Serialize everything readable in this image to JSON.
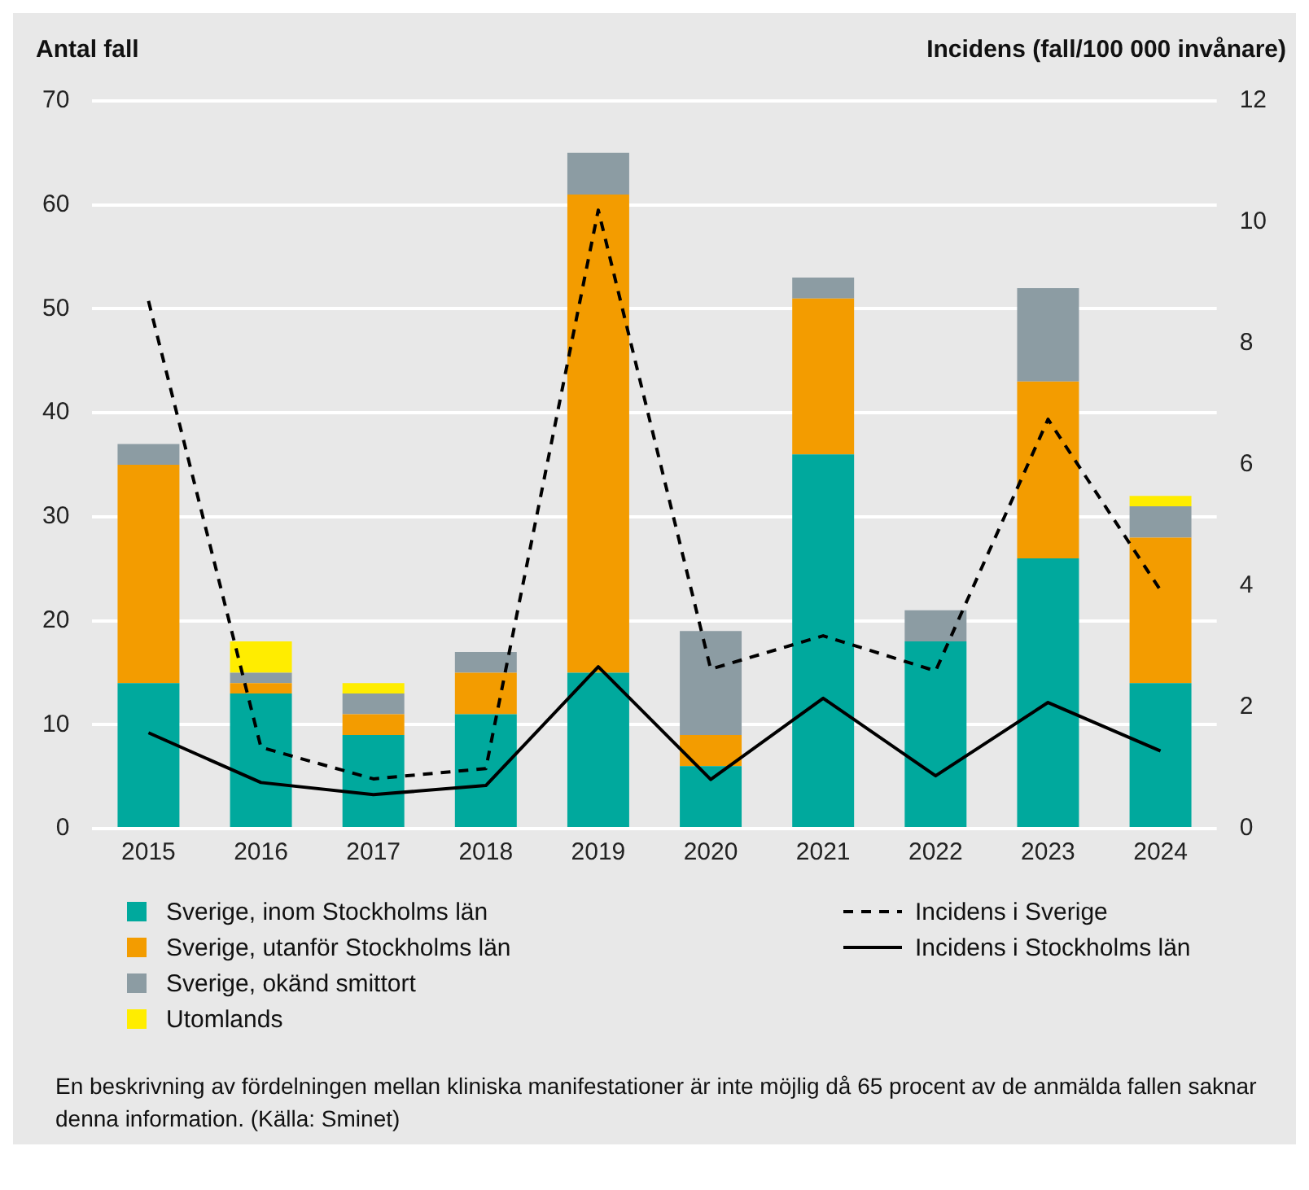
{
  "chart_data": {
    "type": "bar",
    "stacked": true,
    "ylabel": "Antal fall",
    "y2label": "Incidens (fall/100 000 invånare)",
    "categories": [
      "2015",
      "2016",
      "2017",
      "2018",
      "2019",
      "2020",
      "2021",
      "2022",
      "2023",
      "2024"
    ],
    "series": [
      {
        "name": "Sverige, inom Stockholms län",
        "color": "#00a99d",
        "values": [
          14,
          13,
          9,
          11,
          15,
          6,
          36,
          18,
          26,
          14
        ]
      },
      {
        "name": "Sverige, utanför Stockholms län",
        "color": "#f39c00",
        "values": [
          21,
          1,
          2,
          4,
          46,
          3,
          15,
          0,
          17,
          14
        ]
      },
      {
        "name": "Sverige, okänd smittort",
        "color": "#8c9ca3",
        "values": [
          2,
          1,
          2,
          2,
          4,
          10,
          2,
          3,
          9,
          3
        ]
      },
      {
        "name": "Utomlands",
        "color": "#ffed00",
        "values": [
          0,
          3,
          1,
          0,
          0,
          0,
          0,
          0,
          0,
          1
        ]
      },
      {
        "name": "Incidens i Sverige",
        "type": "line",
        "axis": "y2",
        "color": "#000000",
        "line_style": "dashed",
        "marker": "none",
        "values": [
          8.7,
          1.34,
          0.82,
          0.99,
          10.2,
          2.63,
          3.18,
          2.6,
          6.75,
          3.93
        ]
      },
      {
        "name": "Incidens i Stockholms län",
        "type": "line",
        "axis": "y2",
        "color": "#000000",
        "line_style": "solid",
        "marker": "none",
        "values": [
          1.58,
          0.76,
          0.56,
          0.71,
          2.67,
          0.81,
          2.15,
          0.87,
          2.08,
          1.28
        ]
      }
    ],
    "ylim": [
      0,
      70
    ],
    "yticks": [
      0,
      10,
      20,
      30,
      40,
      50,
      60,
      70
    ],
    "y2lim": [
      0,
      12
    ],
    "y2ticks": [
      0,
      2,
      4,
      6,
      8,
      10,
      12
    ],
    "grid": "y",
    "legend": "bottom",
    "annotations": [
      "En beskrivning av fördelningen mellan kliniska manifestationer är inte möjlig då 65 procent av de anmälda fallen saknar denna information. (Källa: Sminet)"
    ]
  }
}
